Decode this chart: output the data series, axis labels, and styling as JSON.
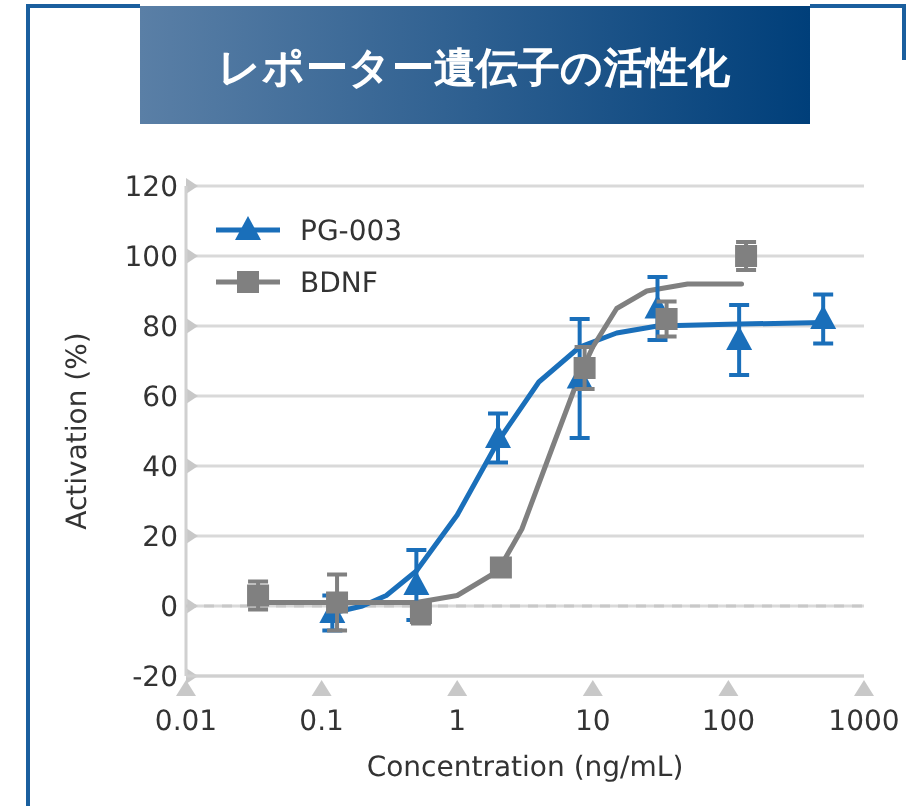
{
  "chart_data": {
    "type": "scatter",
    "title": "レポーター遺伝子の活性化",
    "xlabel": "Concentration (ng/mL)",
    "ylabel": "Activation (%)",
    "log": "x",
    "xlim": [
      0.01,
      1000
    ],
    "xticks": [
      0.01,
      0.1,
      1,
      10,
      100,
      1000
    ],
    "ylim": [
      -20,
      120
    ],
    "yticks": [
      -20,
      0,
      20,
      40,
      60,
      80,
      100,
      120
    ],
    "grid": "y",
    "legend": "top left",
    "ref_lines": [
      {
        "axis": "y",
        "value": 0,
        "color": "#c8c8c8",
        "line_style": "dashed"
      }
    ],
    "series": [
      {
        "type": "line",
        "color": "#1a6fba",
        "marker": "none",
        "x": [
          0.12,
          0.2,
          0.3,
          0.5,
          1,
          2,
          4,
          8,
          15,
          30,
          100,
          500
        ],
        "values": [
          -2,
          0,
          3,
          10,
          26,
          47,
          64,
          74,
          78,
          80,
          80.5,
          81
        ]
      },
      {
        "type": "line",
        "color": "#808080",
        "marker": "none",
        "x": [
          0.034,
          0.5,
          1,
          2,
          3,
          5,
          8,
          10,
          15,
          25,
          50,
          125
        ],
        "values": [
          1,
          1,
          3,
          10,
          22,
          45,
          66,
          74,
          85,
          90,
          92,
          92
        ]
      },
      {
        "type": "scatter",
        "name": "PG-003",
        "color": "#1a6fba",
        "marker": "triangle",
        "x": [
          0.12,
          0.5,
          2,
          8,
          30,
          120,
          500
        ],
        "values": [
          -2,
          6,
          48,
          65,
          85,
          76,
          82
        ],
        "errors": [
          5,
          10,
          7,
          17,
          9,
          10,
          7
        ]
      },
      {
        "type": "scatter",
        "name": "BDNF",
        "color": "#808080",
        "marker": "square",
        "x": [
          0.034,
          0.13,
          0.54,
          2.1,
          8.7,
          35,
          135
        ],
        "values": [
          3,
          1,
          -2,
          11,
          68,
          82,
          100
        ],
        "errors": [
          4,
          8,
          3,
          null,
          6,
          5,
          4
        ]
      }
    ]
  }
}
